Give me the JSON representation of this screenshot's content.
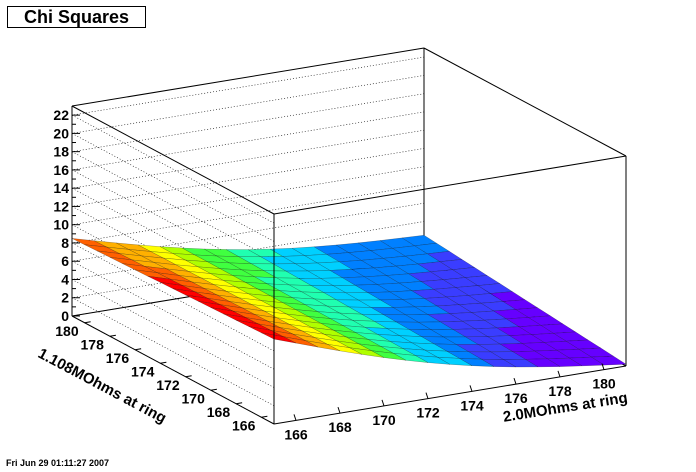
{
  "title": "Chi Squares",
  "footer": "Fri Jun 29 01:11:27 2007",
  "chart_data": {
    "type": "surface",
    "title": "Chi Squares",
    "xlabel": "2.0MOhms at ring",
    "ylabel": "1.108MOhms at ring",
    "zlabel": "",
    "x_ticks": [
      166,
      168,
      170,
      172,
      174,
      176,
      178,
      180
    ],
    "y_ticks": [
      166,
      168,
      170,
      172,
      174,
      176,
      178,
      180
    ],
    "z_ticks": [
      0,
      2,
      4,
      6,
      8,
      10,
      12,
      14,
      16,
      18,
      20,
      22
    ],
    "xlim": [
      165,
      181
    ],
    "ylim": [
      165,
      181
    ],
    "zlim": [
      0,
      23
    ],
    "x": [
      165,
      166,
      167,
      168,
      169,
      170,
      171,
      172,
      173,
      174,
      175,
      176,
      177,
      178,
      179,
      180,
      181
    ],
    "y": [
      165,
      166,
      167,
      168,
      169,
      170,
      171,
      172,
      173,
      174,
      175,
      176,
      177,
      178,
      179,
      180,
      181
    ],
    "corner_values": {
      "x165_y165": 9.3,
      "x181_y165": 0.2,
      "x165_y181": 8.5,
      "x181_y181": 2.5
    },
    "grid": true,
    "palette": [
      "#6600ff",
      "#3a3dff",
      "#0080ff",
      "#00d0ff",
      "#20ffb0",
      "#40ff40",
      "#b0ff00",
      "#ffff00",
      "#ffb000",
      "#ff6000",
      "#ff0000"
    ]
  }
}
